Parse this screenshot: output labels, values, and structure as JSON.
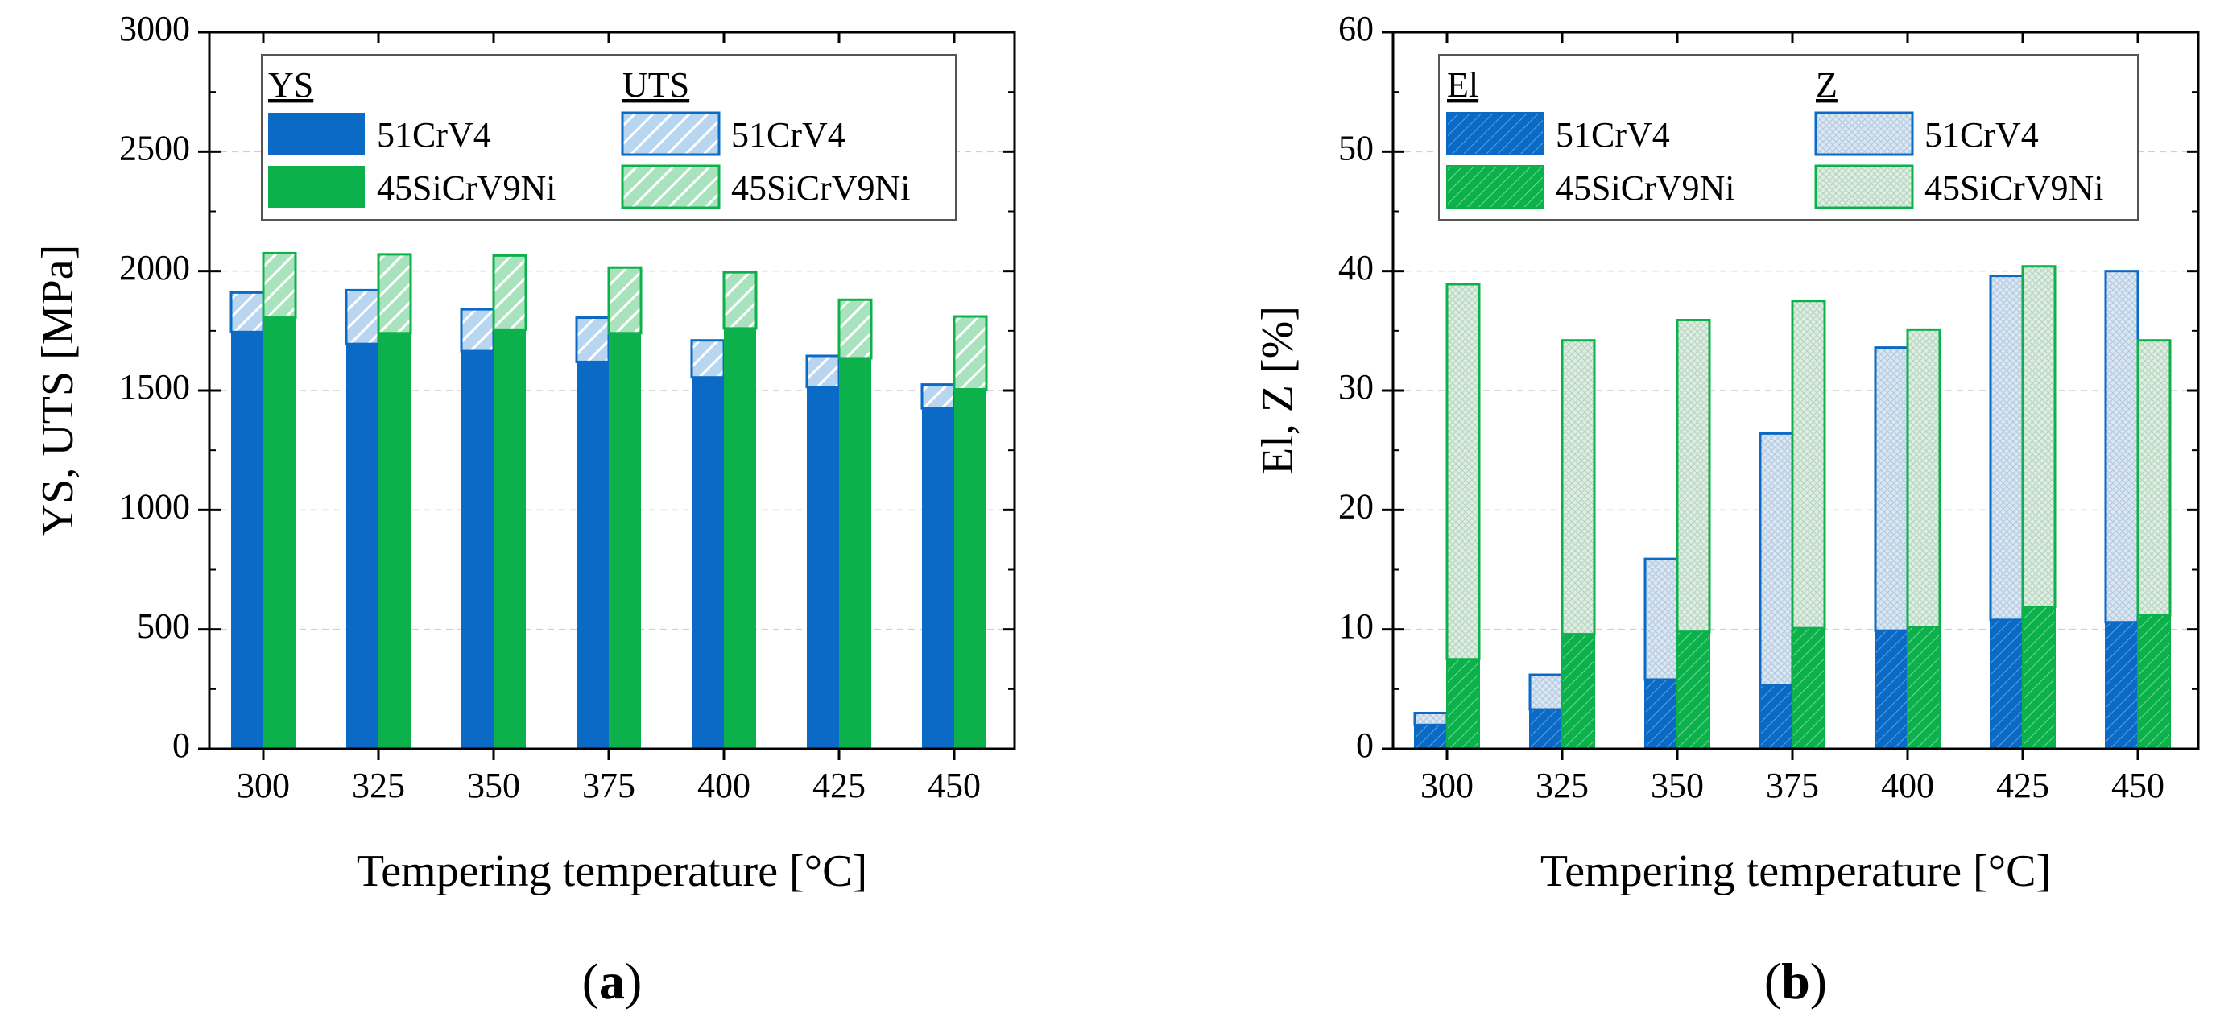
{
  "colors": {
    "blue": "#0a6ac5",
    "green": "#0db14b",
    "grid": "#cfcfcf"
  },
  "chart_data": [
    {
      "type": "bar",
      "panel": "a",
      "panel_label": "a",
      "xlabel": "Tempering temperature [°C]",
      "ylabel": "YS, UTS [MPa]",
      "ylim": [
        0,
        3000
      ],
      "yticks": [
        0,
        500,
        1000,
        1500,
        2000,
        2500,
        3000
      ],
      "categories": [
        "300",
        "325",
        "350",
        "375",
        "400",
        "425",
        "450"
      ],
      "legend": {
        "placement": "top-left",
        "group1_title": "YS",
        "group2_title": "UTS",
        "entries": [
          "51CrV4",
          "45SiCrV9Ni",
          "51CrV4",
          "45SiCrV9Ni"
        ]
      },
      "series": [
        {
          "name": "YS 51CrV4",
          "values": [
            1745,
            1695,
            1665,
            1620,
            1555,
            1515,
            1425
          ]
        },
        {
          "name": "YS 45SiCrV9Ni",
          "values": [
            1805,
            1740,
            1755,
            1740,
            1760,
            1635,
            1505
          ]
        },
        {
          "name": "UTS 51CrV4",
          "values": [
            1910,
            1920,
            1840,
            1805,
            1710,
            1645,
            1525
          ]
        },
        {
          "name": "UTS 45SiCrV9Ni",
          "values": [
            2075,
            2070,
            2065,
            2015,
            1995,
            1880,
            1810
          ]
        }
      ]
    },
    {
      "type": "bar",
      "panel": "b",
      "panel_label": "b",
      "xlabel": "Tempering temperature [°C]",
      "ylabel": "El, Z [%]",
      "ylim": [
        0,
        60
      ],
      "yticks": [
        0,
        10,
        20,
        30,
        40,
        50,
        60
      ],
      "categories": [
        "300",
        "325",
        "350",
        "375",
        "400",
        "425",
        "450"
      ],
      "legend": {
        "placement": "top-left",
        "group1_title": "El",
        "group2_title": "Z",
        "entries": [
          "51CrV4",
          "45SiCrV9Ni",
          "51CrV4",
          "45SiCrV9Ni"
        ]
      },
      "series": [
        {
          "name": "El 51CrV4",
          "values": [
            2.0,
            3.3,
            5.8,
            5.3,
            9.9,
            10.8,
            10.6
          ]
        },
        {
          "name": "El 45SiCrV9Ni",
          "values": [
            7.5,
            9.6,
            9.8,
            10.1,
            10.2,
            11.9,
            11.2
          ]
        },
        {
          "name": "Z 51CrV4",
          "values": [
            3.0,
            6.2,
            15.9,
            26.4,
            33.6,
            39.6,
            40.0
          ]
        },
        {
          "name": "Z 45SiCrV9Ni",
          "values": [
            38.9,
            34.2,
            35.9,
            37.5,
            35.1,
            40.4,
            34.2
          ]
        }
      ]
    }
  ]
}
